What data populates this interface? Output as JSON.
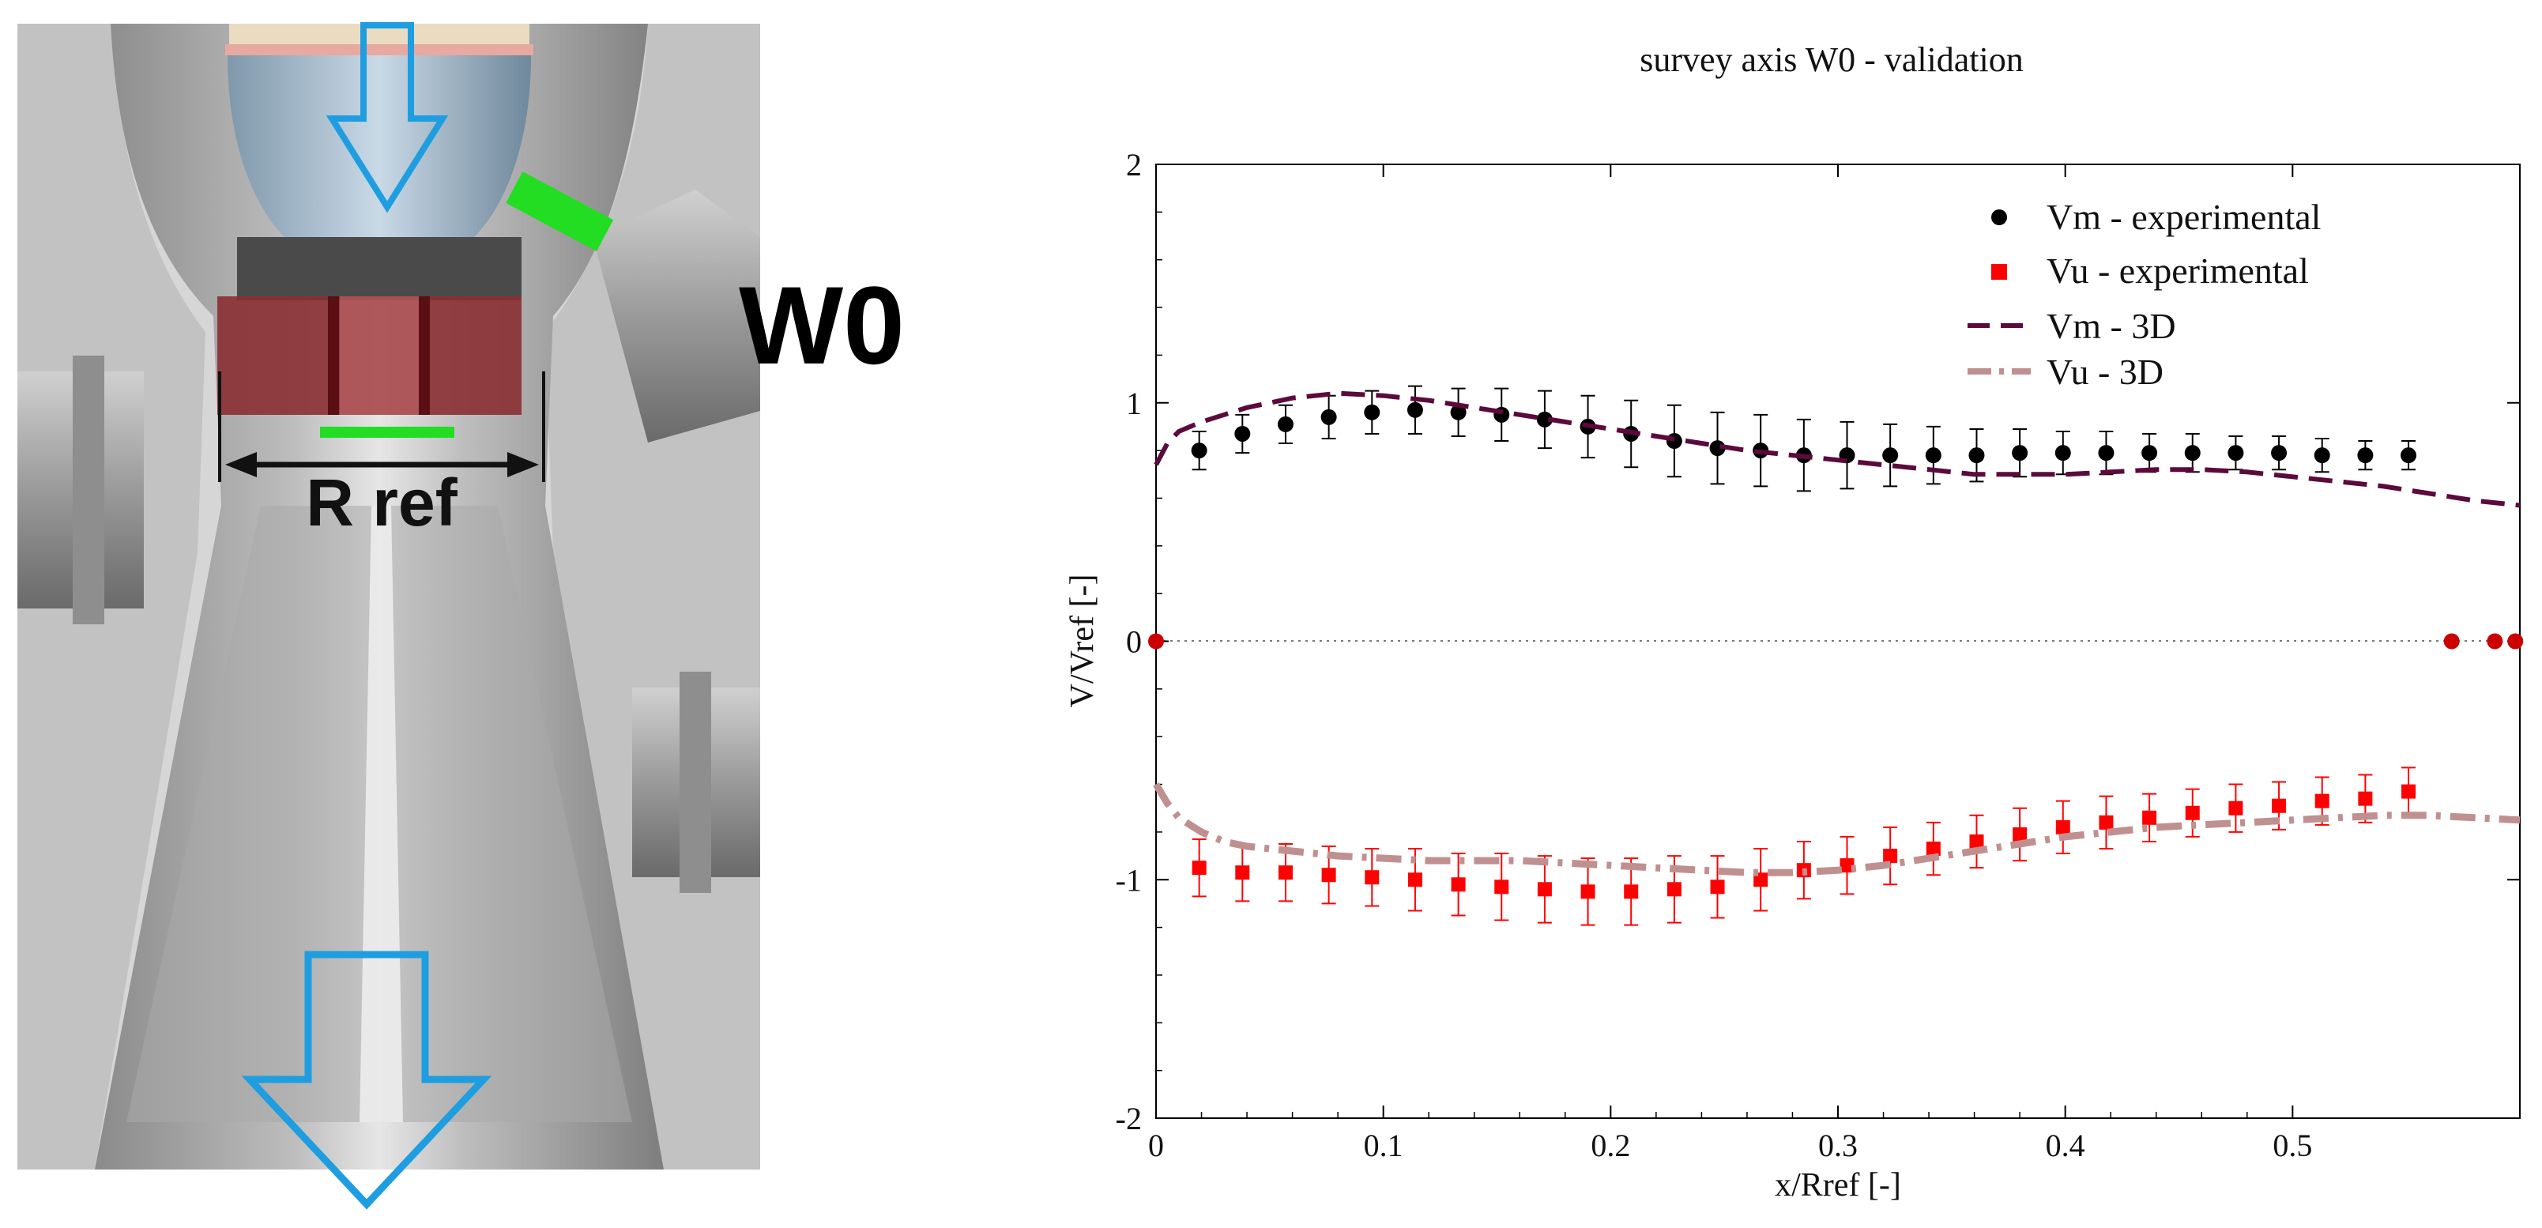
{
  "schematic": {
    "survey_label": "W0",
    "reference_label": "R ref",
    "colors": {
      "housing": "#a8a8a8",
      "housing_dark": "#6f6f6f",
      "cone": "#8fa9bd",
      "block": "#8b2f34",
      "marker_green": "#22dd22",
      "arrow": "#1e9ee0"
    }
  },
  "chart_data": {
    "type": "scatter",
    "title": "survey axis W0 - validation",
    "xlabel": "x/Rref [-]",
    "ylabel": "V/Vref [-]",
    "xlim": [
      0,
      0.6
    ],
    "ylim": [
      -2,
      2
    ],
    "xticks": [
      0,
      0.1,
      0.2,
      0.3,
      0.4,
      0.5
    ],
    "xtick_labels": [
      "0",
      "0.1",
      "0.2",
      "0.3",
      "0.4",
      "0.5"
    ],
    "yticks": [
      -2,
      -1,
      0,
      1,
      2
    ],
    "ytick_labels": [
      "-2",
      "-1",
      "0",
      "1",
      "2"
    ],
    "legend_position": "top-right",
    "zero_line": true,
    "series": [
      {
        "name": "Vm - experimental",
        "kind": "points",
        "marker": "circle",
        "color": "#000000",
        "x": [
          0.019,
          0.038,
          0.057,
          0.076,
          0.095,
          0.114,
          0.133,
          0.152,
          0.171,
          0.19,
          0.209,
          0.228,
          0.247,
          0.266,
          0.285,
          0.304,
          0.323,
          0.342,
          0.361,
          0.38,
          0.399,
          0.418,
          0.437,
          0.456,
          0.475,
          0.494,
          0.513,
          0.532,
          0.551
        ],
        "y": [
          0.8,
          0.87,
          0.91,
          0.94,
          0.96,
          0.97,
          0.96,
          0.95,
          0.93,
          0.9,
          0.87,
          0.84,
          0.81,
          0.8,
          0.78,
          0.78,
          0.78,
          0.78,
          0.78,
          0.79,
          0.79,
          0.79,
          0.79,
          0.79,
          0.79,
          0.79,
          0.78,
          0.78,
          0.78
        ],
        "error": [
          0.08,
          0.08,
          0.08,
          0.09,
          0.09,
          0.1,
          0.1,
          0.11,
          0.12,
          0.13,
          0.14,
          0.15,
          0.15,
          0.15,
          0.15,
          0.14,
          0.13,
          0.12,
          0.11,
          0.1,
          0.09,
          0.09,
          0.08,
          0.08,
          0.07,
          0.07,
          0.07,
          0.06,
          0.06
        ]
      },
      {
        "name": "Vu - experimental",
        "kind": "points",
        "marker": "square",
        "color": "#ff0000",
        "x": [
          0.019,
          0.038,
          0.057,
          0.076,
          0.095,
          0.114,
          0.133,
          0.152,
          0.171,
          0.19,
          0.209,
          0.228,
          0.247,
          0.266,
          0.285,
          0.304,
          0.323,
          0.342,
          0.361,
          0.38,
          0.399,
          0.418,
          0.437,
          0.456,
          0.475,
          0.494,
          0.513,
          0.532,
          0.551
        ],
        "y": [
          -0.95,
          -0.97,
          -0.97,
          -0.98,
          -0.99,
          -1.0,
          -1.02,
          -1.03,
          -1.04,
          -1.05,
          -1.05,
          -1.04,
          -1.03,
          -1.0,
          -0.96,
          -0.94,
          -0.9,
          -0.87,
          -0.84,
          -0.81,
          -0.78,
          -0.76,
          -0.74,
          -0.72,
          -0.7,
          -0.69,
          -0.67,
          -0.66,
          -0.63
        ],
        "error": [
          0.12,
          0.12,
          0.12,
          0.12,
          0.12,
          0.13,
          0.13,
          0.14,
          0.14,
          0.14,
          0.14,
          0.14,
          0.13,
          0.13,
          0.12,
          0.12,
          0.12,
          0.11,
          0.11,
          0.11,
          0.11,
          0.11,
          0.1,
          0.1,
          0.1,
          0.1,
          0.1,
          0.1,
          0.1
        ]
      },
      {
        "name": "Vm - 3D",
        "kind": "line",
        "dash": "dash",
        "color": "#5c0a3c",
        "x": [
          0,
          0.005,
          0.01,
          0.02,
          0.03,
          0.04,
          0.05,
          0.06,
          0.07,
          0.08,
          0.1,
          0.12,
          0.14,
          0.16,
          0.18,
          0.2,
          0.22,
          0.24,
          0.26,
          0.28,
          0.3,
          0.32,
          0.34,
          0.36,
          0.38,
          0.4,
          0.42,
          0.44,
          0.46,
          0.48,
          0.5,
          0.52,
          0.54,
          0.56,
          0.58,
          0.6
        ],
        "y": [
          0.74,
          0.83,
          0.88,
          0.92,
          0.95,
          0.98,
          1.0,
          1.02,
          1.03,
          1.04,
          1.03,
          1.01,
          0.98,
          0.95,
          0.92,
          0.89,
          0.86,
          0.83,
          0.8,
          0.78,
          0.76,
          0.74,
          0.72,
          0.7,
          0.7,
          0.7,
          0.71,
          0.72,
          0.72,
          0.71,
          0.69,
          0.67,
          0.65,
          0.62,
          0.59,
          0.57
        ]
      },
      {
        "name": "Vu - 3D",
        "kind": "line",
        "dash": "dash-dot",
        "color": "#c09090",
        "x": [
          0,
          0.005,
          0.01,
          0.02,
          0.03,
          0.04,
          0.06,
          0.08,
          0.1,
          0.12,
          0.14,
          0.16,
          0.18,
          0.2,
          0.22,
          0.24,
          0.26,
          0.28,
          0.3,
          0.32,
          0.34,
          0.36,
          0.38,
          0.4,
          0.42,
          0.44,
          0.46,
          0.48,
          0.5,
          0.52,
          0.54,
          0.56,
          0.58,
          0.6
        ],
        "y": [
          -0.6,
          -0.68,
          -0.74,
          -0.8,
          -0.84,
          -0.86,
          -0.88,
          -0.9,
          -0.91,
          -0.92,
          -0.92,
          -0.92,
          -0.93,
          -0.94,
          -0.95,
          -0.96,
          -0.97,
          -0.97,
          -0.96,
          -0.94,
          -0.91,
          -0.88,
          -0.85,
          -0.82,
          -0.8,
          -0.78,
          -0.77,
          -0.76,
          -0.75,
          -0.74,
          -0.73,
          -0.73,
          -0.74,
          -0.75
        ]
      },
      {
        "name": "zero-markers",
        "kind": "points",
        "marker": "circle",
        "color": "#cc0000",
        "show_in_legend": false,
        "x": [
          0,
          0.57,
          0.589,
          0.598
        ],
        "y": [
          0,
          0,
          0,
          0
        ]
      }
    ]
  }
}
